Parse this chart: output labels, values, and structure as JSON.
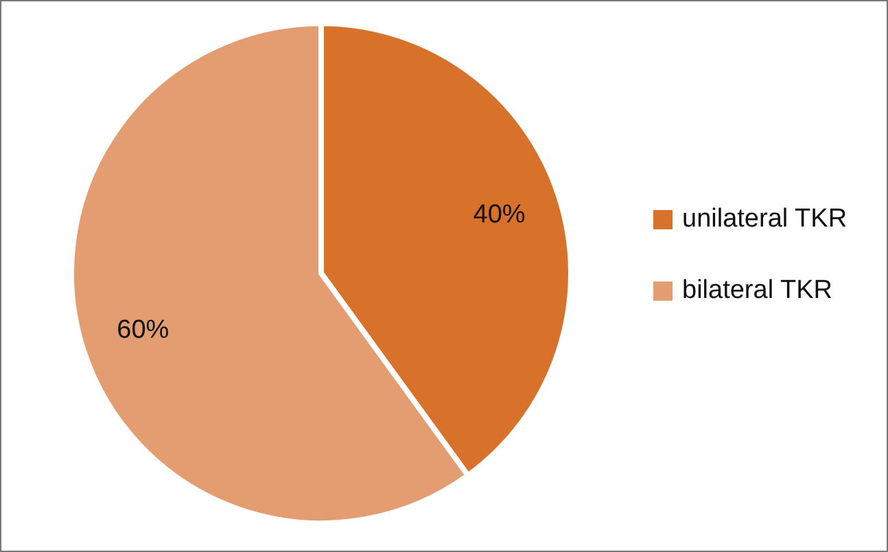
{
  "chart_data": {
    "type": "pie",
    "categories": [
      "unilateral TKR",
      "bilateral TKR"
    ],
    "values": [
      40,
      60
    ],
    "colors": [
      "#d8722a",
      "#e39d70"
    ],
    "value_labels": [
      "40%",
      "60%"
    ],
    "legend": "right"
  }
}
